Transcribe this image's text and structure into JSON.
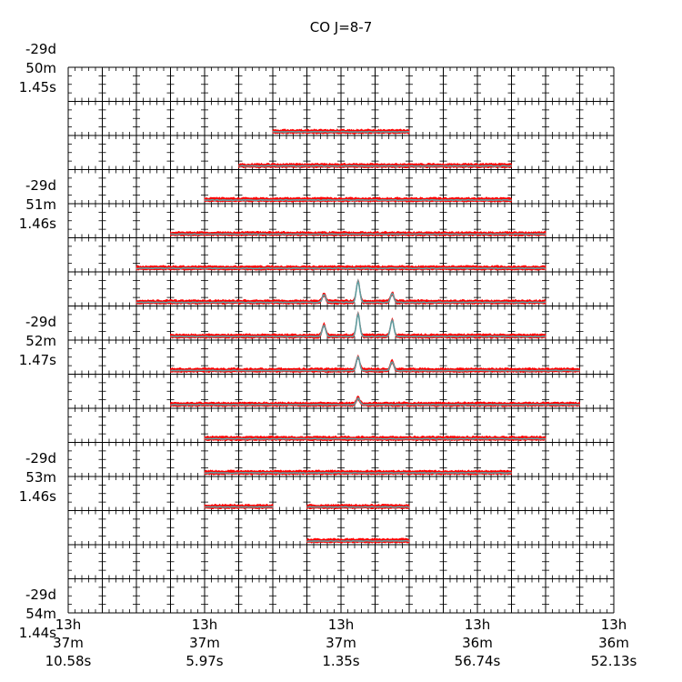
{
  "chart_data": {
    "type": "spectral-grid",
    "title": "CO J=8-7",
    "ra_tick_labels": [
      [
        "13h",
        "37m",
        "10.58s"
      ],
      [
        "13h",
        "37m",
        "5.97s"
      ],
      [
        "13h",
        "37m",
        "1.35s"
      ],
      [
        "13h",
        "36m",
        "56.74s"
      ],
      [
        "13h",
        "36m",
        "52.13s"
      ]
    ],
    "dec_tick_labels": [
      [
        "-29d",
        "50m",
        "1.45s"
      ],
      [
        "-29d",
        "51m",
        "1.46s"
      ],
      [
        "-29d",
        "52m",
        "1.47s"
      ],
      [
        "-29d",
        "53m",
        "1.46s"
      ],
      [
        "-29d",
        "54m",
        "1.44s"
      ]
    ],
    "grid_columns": 16,
    "grid_rows": 16,
    "spectra_present": [
      {
        "row": 1,
        "cols": [
          6,
          7,
          8,
          9
        ]
      },
      {
        "row": 2,
        "cols": [
          5,
          6,
          7,
          8,
          9,
          10,
          11,
          12
        ]
      },
      {
        "row": 3,
        "cols": [
          4,
          5,
          6,
          7,
          8,
          9,
          10,
          11,
          12
        ]
      },
      {
        "row": 4,
        "cols": [
          3,
          4,
          5,
          6,
          7,
          8,
          9,
          10,
          11,
          12,
          13
        ]
      },
      {
        "row": 5,
        "cols": [
          2,
          3,
          4,
          5,
          6,
          7,
          8,
          9,
          10,
          11,
          12,
          13
        ]
      },
      {
        "row": 6,
        "cols": [
          2,
          3,
          4,
          5,
          6,
          7,
          8,
          9,
          10,
          11,
          12,
          13
        ]
      },
      {
        "row": 7,
        "cols": [
          3,
          4,
          5,
          6,
          7,
          8,
          9,
          10,
          11,
          12,
          13
        ]
      },
      {
        "row": 8,
        "cols": [
          3,
          4,
          5,
          6,
          7,
          8,
          9,
          10,
          11,
          12,
          13,
          14
        ]
      },
      {
        "row": 9,
        "cols": [
          3,
          4,
          5,
          6,
          7,
          8,
          9,
          10,
          11,
          12,
          13,
          14
        ]
      },
      {
        "row": 10,
        "cols": [
          4,
          5,
          6,
          7,
          8,
          9,
          10,
          11,
          12,
          13
        ]
      },
      {
        "row": 11,
        "cols": [
          4,
          5,
          6,
          7,
          8,
          9,
          10,
          11,
          12
        ]
      },
      {
        "row": 12,
        "cols": [
          4,
          5,
          7,
          8,
          9
        ]
      },
      {
        "row": 13,
        "cols": [
          7,
          8,
          9
        ]
      }
    ],
    "line_peaks": [
      {
        "row": 6,
        "col": 8,
        "strength": 0.85
      },
      {
        "row": 6,
        "col": 9,
        "strength": 0.35
      },
      {
        "row": 6,
        "col": 7,
        "strength": 0.3
      },
      {
        "row": 7,
        "col": 8,
        "strength": 0.9
      },
      {
        "row": 7,
        "col": 9,
        "strength": 0.65
      },
      {
        "row": 7,
        "col": 7,
        "strength": 0.45
      },
      {
        "row": 8,
        "col": 8,
        "strength": 0.55
      },
      {
        "row": 8,
        "col": 9,
        "strength": 0.35
      },
      {
        "row": 9,
        "col": 8,
        "strength": 0.25
      }
    ],
    "colors": {
      "spectrum_fill": "#ff0000",
      "model_line": "#5f9ea0",
      "grid": "#000000"
    }
  }
}
